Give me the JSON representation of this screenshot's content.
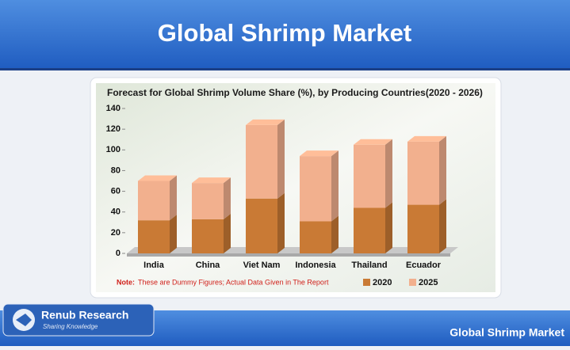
{
  "header": {
    "title": "Global Shrimp Market"
  },
  "footer": {
    "brand": "Renub Research",
    "tagline": "Sharing Knowledge",
    "text": "Global Shrimp Market"
  },
  "chart_data": {
    "type": "stacked_bar_3d",
    "title": "Forecast for Global Shrimp Volume Share (%), by Producing Countries(2020 - 2026)",
    "categories": [
      "India",
      "China",
      "Viet Nam",
      "Indonesia",
      "Thailand",
      "Ecuador"
    ],
    "series": [
      {
        "name": "2020",
        "color": "#c97a35",
        "values": [
          32,
          33,
          53,
          31,
          44,
          47
        ]
      },
      {
        "name": "2025",
        "color": "#f2b08e",
        "values": [
          38,
          35,
          71,
          63,
          61,
          61
        ]
      }
    ],
    "ylim": [
      0,
      140
    ],
    "yticks": [
      0,
      20,
      40,
      60,
      80,
      100,
      120,
      140
    ],
    "note_label": "Note:",
    "note": "These are Dummy Figures; Actual Data Given in The Report"
  }
}
